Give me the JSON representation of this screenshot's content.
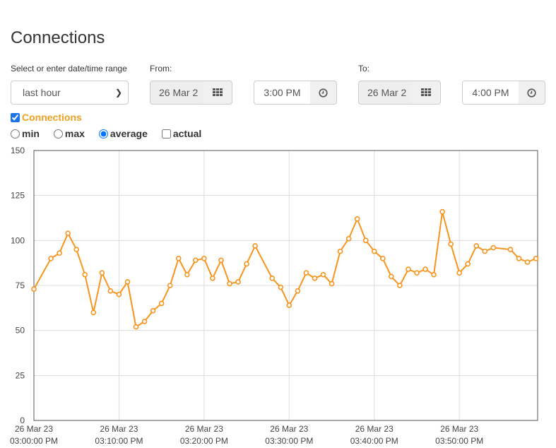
{
  "page": {
    "title": "Connections"
  },
  "range": {
    "label": "Select or enter date/time range",
    "selected": "last hour"
  },
  "from": {
    "label": "From:",
    "date": "26 Mar 2",
    "time": "3:00 PM"
  },
  "to": {
    "label": "To:",
    "date": "26 Mar 2",
    "time": "4:00 PM"
  },
  "series_toggle": {
    "label": "Connections",
    "checked": true
  },
  "modes": [
    {
      "label": "min",
      "checked": false
    },
    {
      "label": "max",
      "checked": false
    },
    {
      "label": "average",
      "checked": true
    },
    {
      "label": "actual",
      "checked": false
    }
  ],
  "colors": {
    "series": "#f7941d",
    "grid": "#dddddd",
    "frame": "#555555"
  },
  "icons": {
    "date_button": "calendar-grid-icon",
    "time_button": "clock-icon"
  },
  "chart_data": {
    "type": "line",
    "ylim": [
      0,
      150
    ],
    "yticks": [
      0,
      25,
      50,
      75,
      100,
      125,
      150
    ],
    "xticks": [
      {
        "date": "26 Mar 23",
        "time": "03:00:00 PM",
        "minute": 0
      },
      {
        "date": "26 Mar 23",
        "time": "03:10:00 PM",
        "minute": 10
      },
      {
        "date": "26 Mar 23",
        "time": "03:20:00 PM",
        "minute": 20
      },
      {
        "date": "26 Mar 23",
        "time": "03:30:00 PM",
        "minute": 30
      },
      {
        "date": "26 Mar 23",
        "time": "03:40:00 PM",
        "minute": 40
      },
      {
        "date": "26 Mar 23",
        "time": "03:50:00 PM",
        "minute": 50
      }
    ],
    "xlim": [
      0,
      59.2
    ],
    "grid": true,
    "series": [
      {
        "x": [
          0,
          2,
          3,
          4,
          5,
          6,
          7,
          8,
          9,
          10,
          11,
          12,
          13,
          14,
          15,
          16,
          17,
          18,
          19,
          20,
          21,
          22,
          23,
          24,
          25,
          26,
          28,
          29,
          30,
          31,
          32,
          33,
          34,
          35,
          36,
          37,
          38,
          39,
          40,
          41,
          42,
          43,
          44,
          45,
          46,
          47,
          48,
          49,
          50,
          51,
          52,
          53,
          54,
          56,
          57,
          58,
          59
        ],
        "y": [
          73,
          90,
          93,
          104,
          95,
          81,
          60,
          82,
          72,
          70,
          77,
          52,
          55,
          61,
          65,
          75,
          90,
          81,
          89,
          90,
          79,
          89,
          76,
          77,
          87,
          97,
          79,
          74,
          64,
          72,
          82,
          79,
          81,
          76,
          94,
          101,
          112,
          100,
          94,
          90,
          80,
          75,
          84,
          82,
          84,
          81,
          116,
          98,
          82,
          87,
          97,
          94,
          96,
          95,
          90,
          88,
          90
        ]
      }
    ]
  }
}
